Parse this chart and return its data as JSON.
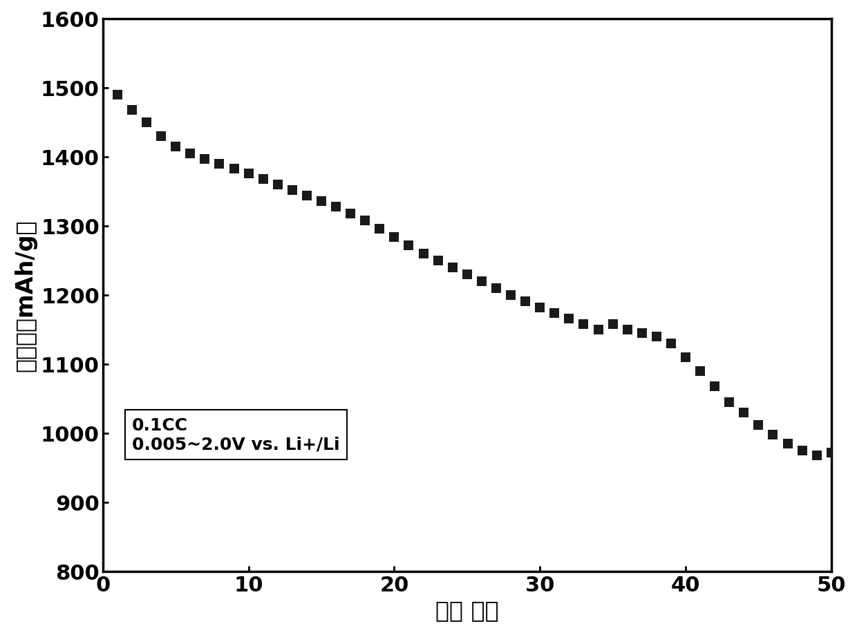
{
  "x": [
    1,
    2,
    3,
    4,
    5,
    6,
    7,
    8,
    9,
    10,
    11,
    12,
    13,
    14,
    15,
    16,
    17,
    18,
    19,
    20,
    21,
    22,
    23,
    24,
    25,
    26,
    27,
    28,
    29,
    30,
    31,
    32,
    33,
    34,
    35,
    36,
    37,
    38,
    39,
    40,
    41,
    42,
    43,
    44,
    45,
    46,
    47,
    48,
    49,
    50
  ],
  "y": [
    1490,
    1468,
    1450,
    1430,
    1415,
    1405,
    1397,
    1390,
    1383,
    1376,
    1368,
    1360,
    1352,
    1344,
    1336,
    1328,
    1318,
    1308,
    1296,
    1284,
    1272,
    1260,
    1250,
    1240,
    1230,
    1220,
    1210,
    1200,
    1191,
    1182,
    1174,
    1166,
    1158,
    1150,
    1158,
    1150,
    1145,
    1140,
    1130,
    1110,
    1090,
    1068,
    1045,
    1030,
    1012,
    998,
    985,
    975,
    968,
    972
  ],
  "marker": "s",
  "marker_color": "#1a1a1a",
  "marker_size": 90,
  "xlabel": "循环 次数",
  "ylabel": "比容量（mAh/g）",
  "xlim": [
    0,
    50
  ],
  "ylim": [
    800,
    1600
  ],
  "xticks": [
    0,
    10,
    20,
    30,
    40,
    50
  ],
  "yticks": [
    800,
    900,
    1000,
    1100,
    1200,
    1300,
    1400,
    1500,
    1600
  ],
  "legend_line1": "0.1CC",
  "legend_line2": "0.005~2.0V vs. Li",
  "legend_line2_super": "+",
  "legend_line2_end": "/Li",
  "background_color": "#ffffff",
  "tick_fontsize": 22,
  "label_fontsize": 24,
  "legend_fontsize": 18,
  "border_linewidth": 2.5
}
